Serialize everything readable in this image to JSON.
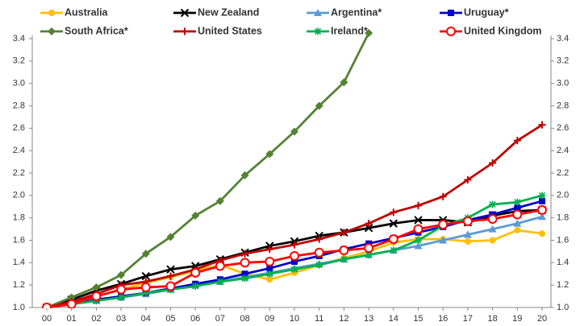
{
  "chart_data": {
    "type": "line",
    "categories": [
      "00",
      "01",
      "02",
      "03",
      "04",
      "05",
      "06",
      "07",
      "08",
      "09",
      "10",
      "11",
      "12",
      "13",
      "14",
      "15",
      "16",
      "17",
      "18",
      "19",
      "20"
    ],
    "ylim": [
      1.0,
      3.4
    ],
    "yticks": [
      {
        "value": 1.0,
        "label": "1.0"
      },
      1.2,
      1.4,
      1.6,
      1.8,
      {
        "value": 2.0,
        "label": "2.0"
      },
      2.2,
      2.4,
      2.6,
      2.8,
      {
        "value": 3.0,
        "label": "3.0"
      },
      3.2,
      3.4
    ],
    "grid": false,
    "legend": "top",
    "series": [
      {
        "name": "Australia",
        "color": "#FFC000",
        "marker": "circle-filled",
        "values": [
          1.0,
          1.04,
          1.1,
          1.16,
          1.22,
          1.27,
          1.33,
          1.38,
          1.3,
          1.25,
          1.31,
          1.38,
          1.44,
          1.5,
          1.58,
          1.61,
          1.61,
          1.59,
          1.6,
          1.69,
          1.66
        ]
      },
      {
        "name": "New Zealand",
        "color": "#000000",
        "marker": "x",
        "values": [
          1.0,
          1.07,
          1.15,
          1.21,
          1.28,
          1.34,
          1.37,
          1.43,
          1.49,
          1.55,
          1.59,
          1.64,
          1.67,
          1.71,
          1.75,
          1.78,
          1.78,
          1.76,
          1.82,
          1.86,
          1.87
        ]
      },
      {
        "name": "Argentina*",
        "color": "#5B9BD5",
        "marker": "triangle",
        "values": [
          1.0,
          1.03,
          1.06,
          1.09,
          1.12,
          1.16,
          1.2,
          1.23,
          1.27,
          1.31,
          1.35,
          1.39,
          1.43,
          1.47,
          1.51,
          1.55,
          1.6,
          1.65,
          1.7,
          1.75,
          1.81
        ]
      },
      {
        "name": "Uruguay*",
        "color": "#0000CC",
        "marker": "square",
        "values": [
          1.0,
          1.03,
          1.07,
          1.1,
          1.13,
          1.17,
          1.21,
          1.25,
          1.3,
          1.35,
          1.41,
          1.46,
          1.52,
          1.57,
          1.62,
          1.67,
          1.72,
          1.78,
          1.83,
          1.89,
          1.95
        ]
      },
      {
        "name": "South Africa*",
        "color": "#548235",
        "marker": "diamond",
        "values": [
          1.0,
          1.09,
          1.18,
          1.29,
          1.48,
          1.63,
          1.82,
          1.95,
          2.18,
          2.37,
          2.57,
          2.8,
          3.01,
          3.45,
          null,
          null,
          null,
          null,
          null,
          null,
          null
        ]
      },
      {
        "name": "United States",
        "color": "#C00000",
        "marker": "plus",
        "values": [
          1.0,
          1.05,
          1.12,
          1.2,
          1.23,
          1.28,
          1.34,
          1.42,
          1.48,
          1.52,
          1.56,
          1.61,
          1.67,
          1.75,
          1.85,
          1.91,
          1.99,
          2.14,
          2.29,
          2.49,
          2.63
        ]
      },
      {
        "name": "Ireland*",
        "color": "#00B050",
        "marker": "asterisk",
        "values": [
          1.0,
          1.03,
          1.06,
          1.09,
          1.13,
          1.16,
          1.19,
          1.23,
          1.26,
          1.3,
          1.34,
          1.38,
          1.43,
          1.47,
          1.51,
          1.6,
          1.73,
          1.8,
          1.92,
          1.94,
          2.0
        ]
      },
      {
        "name": "United Kingdom",
        "color": "#FF0000",
        "marker": "circle-open",
        "values": [
          1.0,
          1.03,
          1.1,
          1.16,
          1.18,
          1.19,
          1.31,
          1.37,
          1.4,
          1.41,
          1.46,
          1.49,
          1.51,
          1.53,
          1.61,
          1.7,
          1.74,
          1.77,
          1.79,
          1.83,
          1.87
        ]
      }
    ]
  }
}
